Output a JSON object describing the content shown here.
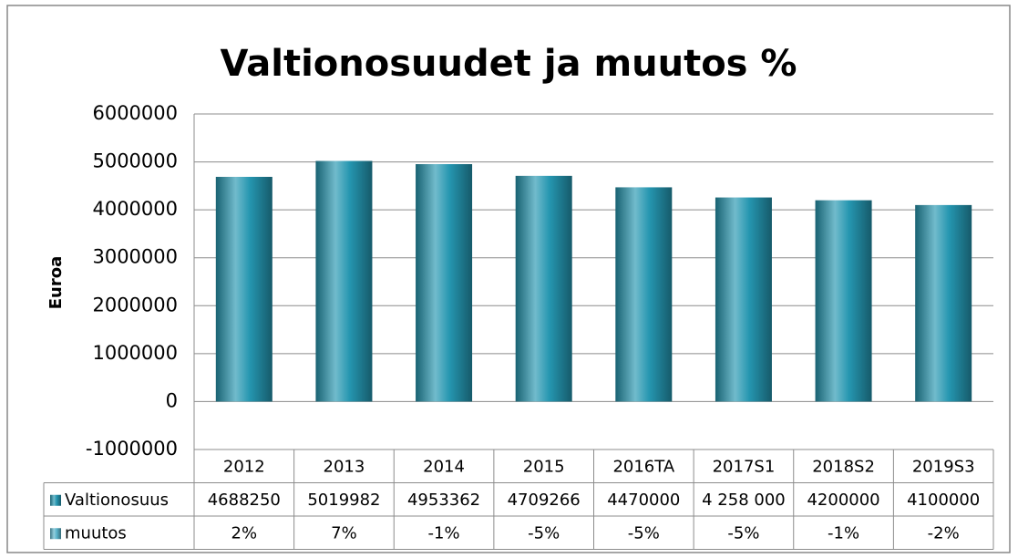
{
  "chart_data": {
    "type": "bar",
    "title": "Valtionosuudet ja muutos %",
    "y_label": "Euroa",
    "categories": [
      "2012",
      "2013",
      "2014",
      "2015",
      "2016TA",
      "2017S1",
      "2018S2",
      "2019S3"
    ],
    "series": [
      {
        "name": "Valtionosuus",
        "color": "#2596b0",
        "values": [
          4688250,
          5019982,
          4953362,
          4709266,
          4470000,
          4258000,
          4200000,
          4100000
        ],
        "value_labels": [
          "4688250",
          "5019982",
          "4953362",
          "4709266",
          "4470000",
          "4 258 000",
          "4200000",
          "4100000"
        ]
      },
      {
        "name": "muutos",
        "color": "#5ab4cb",
        "values": [
          2,
          7,
          -1,
          -5,
          -5,
          -5,
          -1,
          -2
        ],
        "value_labels": [
          "2%",
          "7%",
          "-1%",
          "-5%",
          "-5%",
          "-5%",
          "-1%",
          "-2%"
        ]
      }
    ],
    "ylim": [
      -1000000,
      6000000
    ],
    "yticks": [
      -1000000,
      0,
      1000000,
      2000000,
      3000000,
      4000000,
      5000000,
      6000000
    ],
    "grid": true,
    "data_table": true
  }
}
